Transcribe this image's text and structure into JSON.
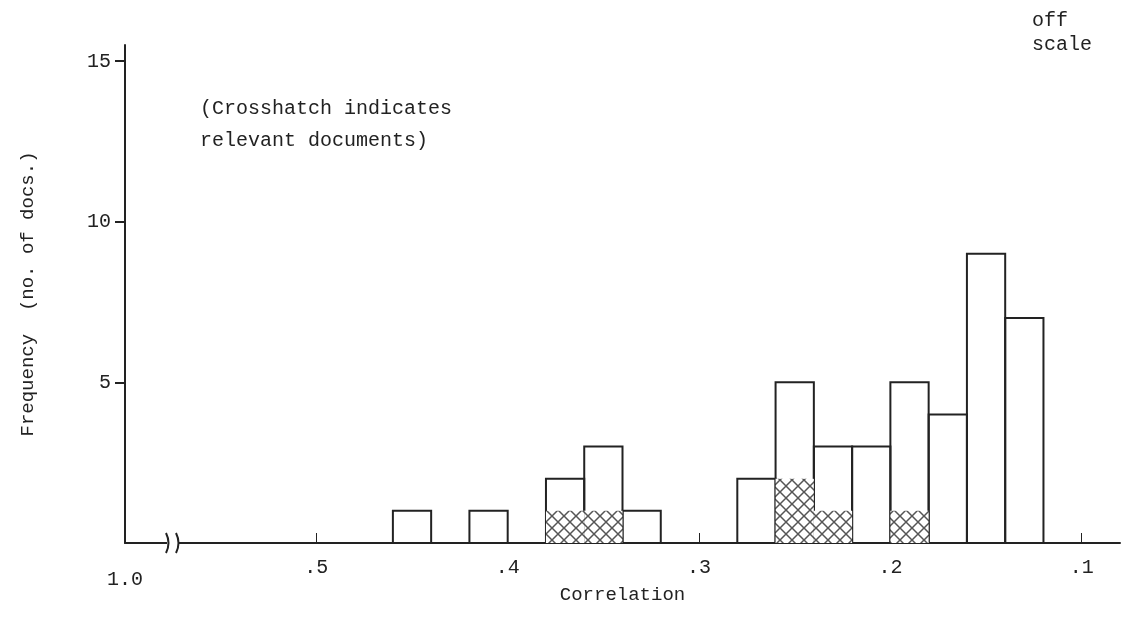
{
  "chart_data": {
    "type": "histogram",
    "xlabel": "Correlation",
    "ylabel": "Frequency  (no. of docs.)",
    "annotations": [
      "(Crosshatch indicates\nrelevant documents)",
      "1.0",
      "off\nscale"
    ],
    "bins": [
      0.1,
      0.12,
      0.14,
      0.16,
      0.18,
      0.2,
      0.22,
      0.24,
      0.26,
      0.28,
      0.3,
      0.32,
      0.34,
      0.36,
      0.38,
      0.4,
      0.42,
      0.44,
      0.46
    ],
    "series": [
      {
        "color": "#222222",
        "values": [
          null,
          7,
          9,
          4,
          5,
          3,
          3,
          5,
          2,
          0,
          0,
          1,
          3,
          2,
          0,
          1,
          0,
          1
        ]
      },
      {
        "color": "#555555",
        "values": [
          0,
          0,
          0,
          0,
          1,
          0,
          1,
          2,
          0,
          0,
          0,
          0,
          1,
          1,
          0,
          0,
          0,
          0
        ]
      }
    ],
    "xlim": [
      0.6,
      0.08
    ],
    "xticks": [
      {
        "value": 0.5,
        "label": ".5"
      },
      {
        "value": 0.4,
        "label": ".4"
      },
      {
        "value": 0.3,
        "label": ".3"
      },
      {
        "value": 0.2,
        "label": ".2"
      },
      {
        "value": 0.1,
        "label": ".1"
      }
    ],
    "ylim": [
      0,
      15.5
    ],
    "yticks": [
      5,
      10,
      15
    ],
    "grid": false
  }
}
